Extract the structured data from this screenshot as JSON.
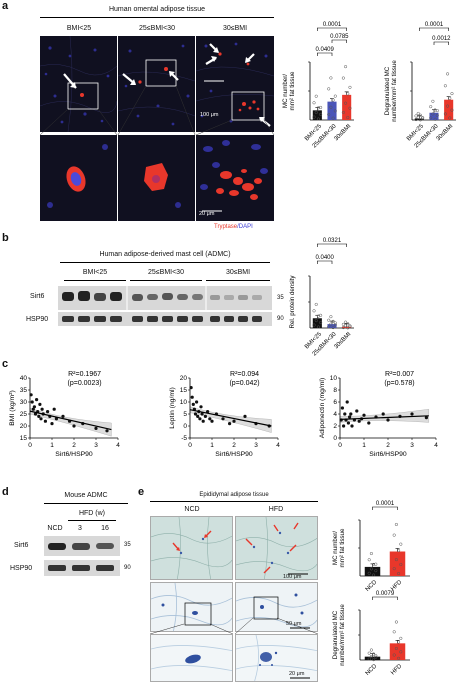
{
  "panel_a": {
    "label": "a",
    "title": "Human omental adipose tissue",
    "groups": [
      "BMI<25",
      "25≤BMI<30",
      "30≤BMI"
    ],
    "scalebar_top": "100 μm",
    "scalebar_bottom": "20 μm",
    "stain_red": "Tryptase",
    "stain_sep": "/",
    "stain_blue": "DAPI",
    "colors": {
      "red": "#e8372b",
      "blue": "#3b3bd6",
      "bmi_lt25": "#111111",
      "bmi_25_30": "#4a55b8",
      "bmi_ge30": "#e8372b"
    }
  },
  "panel_b": {
    "label": "b",
    "title": "Human adipose-derived mast cell (ADMC)",
    "groups": [
      "BMI<25",
      "25≤BMI<30",
      "30≤BMI"
    ],
    "rows": [
      "Sirt6",
      "HSP90"
    ],
    "markers": [
      "35",
      "90"
    ]
  },
  "panel_c": {
    "label": "c"
  },
  "panel_d": {
    "label": "d",
    "title": "Mouse ADMC",
    "hfd": "HFD (w)",
    "lanes": [
      "NCD",
      "3",
      "16"
    ],
    "rows": [
      "Sirt6",
      "HSP90"
    ],
    "markers": [
      "35",
      "90"
    ]
  },
  "panel_e": {
    "label": "e",
    "title": "Epididymal adipose tissue",
    "cols": [
      "NCD",
      "HFD"
    ],
    "scalebars": [
      "100 μm",
      "50 μm",
      "20 μm"
    ]
  },
  "chart_data": [
    {
      "type": "bar",
      "ylabel_line1": "MC number/",
      "ylabel_line2": "mm² fat tissue",
      "categories": [
        "BMI<25",
        "25≤BMI<30",
        "30≤BMI"
      ],
      "values": [
        1.0,
        1.9,
        2.6
      ],
      "ylim": [
        0,
        6
      ],
      "pvalues": [
        "0.0001",
        "0.0785",
        "0.0409"
      ]
    },
    {
      "type": "bar",
      "ylabel_line1": "Degranulated MC",
      "ylabel_line2": "number/mm² fat tissue",
      "categories": [
        "BMI<25",
        "25≤BMI<30",
        "30≤BMI"
      ],
      "values": [
        0.1,
        0.5,
        1.4
      ],
      "ylim": [
        0,
        4
      ],
      "pvalues": [
        "0.0001",
        "0.0012"
      ]
    },
    {
      "type": "bar",
      "ylabel": "Rel. protein density",
      "categories": [
        "BMI<25",
        "25≤BMI<30",
        "30≤BMI"
      ],
      "values": [
        0.75,
        0.3,
        0.1
      ],
      "ylim": [
        0,
        4
      ],
      "pvalues": [
        "0.0321",
        "0.0400"
      ]
    },
    {
      "type": "scatter",
      "xlabel": "Sirt6/HSP90",
      "ylabel": "BMI (kg/m²)",
      "xlim": [
        0,
        4
      ],
      "ylim": [
        15,
        40
      ],
      "xticks": [
        "0",
        "1",
        "2",
        "3",
        "4"
      ],
      "yticks": [
        "15",
        "20",
        "25",
        "30",
        "35",
        "40"
      ],
      "stat1": "R²=0.1967",
      "stat2": "(p=0.0023)",
      "fit": [
        [
          0,
          26.2
        ],
        [
          3.7,
          18.5
        ]
      ],
      "points": [
        [
          0.05,
          33
        ],
        [
          0.1,
          30
        ],
        [
          0.15,
          27
        ],
        [
          0.2,
          28
        ],
        [
          0.25,
          25
        ],
        [
          0.3,
          31
        ],
        [
          0.35,
          26
        ],
        [
          0.4,
          24
        ],
        [
          0.45,
          29
        ],
        [
          0.5,
          23
        ],
        [
          0.55,
          27
        ],
        [
          0.6,
          25
        ],
        [
          0.7,
          22
        ],
        [
          0.8,
          26
        ],
        [
          0.9,
          24
        ],
        [
          1.0,
          21
        ],
        [
          1.1,
          27
        ],
        [
          1.2,
          23
        ],
        [
          1.5,
          24
        ],
        [
          1.8,
          22
        ],
        [
          2.0,
          20
        ],
        [
          2.4,
          21
        ],
        [
          3.0,
          19
        ],
        [
          3.5,
          18
        ]
      ]
    },
    {
      "type": "scatter",
      "xlabel": "Sirt6/HSP90",
      "ylabel": "Leptin (ng/ml)",
      "xlim": [
        0,
        4
      ],
      "ylim": [
        -5,
        20
      ],
      "xticks": [
        "0",
        "1",
        "2",
        "3",
        "4"
      ],
      "yticks": [
        "-5",
        "0",
        "5",
        "10",
        "15",
        "20"
      ],
      "stat1": "R²=0.094",
      "stat2": "(p=0.042)",
      "fit": [
        [
          0,
          6.8
        ],
        [
          3.7,
          0.0
        ]
      ],
      "points": [
        [
          0.05,
          16
        ],
        [
          0.1,
          12
        ],
        [
          0.15,
          9
        ],
        [
          0.2,
          7
        ],
        [
          0.25,
          5
        ],
        [
          0.3,
          10
        ],
        [
          0.35,
          4
        ],
        [
          0.4,
          6
        ],
        [
          0.45,
          3
        ],
        [
          0.5,
          8
        ],
        [
          0.55,
          5
        ],
        [
          0.6,
          2
        ],
        [
          0.7,
          4
        ],
        [
          0.8,
          6
        ],
        [
          0.9,
          3
        ],
        [
          1.0,
          2
        ],
        [
          1.2,
          5
        ],
        [
          1.5,
          3
        ],
        [
          1.8,
          1
        ],
        [
          2.0,
          2
        ],
        [
          2.5,
          4
        ],
        [
          3.0,
          1
        ],
        [
          3.6,
          0
        ]
      ]
    },
    {
      "type": "scatter",
      "xlabel": "Sirt6/HSP90",
      "ylabel": "Adiponectin (mg/ml)",
      "xlim": [
        0,
        4
      ],
      "ylim": [
        0,
        10
      ],
      "xticks": [
        "0",
        "1",
        "2",
        "3",
        "4"
      ],
      "yticks": [
        "0",
        "2",
        "4",
        "6",
        "8",
        "10"
      ],
      "stat1": "R²=0.007",
      "stat2": "(p=0.578)",
      "fit": [
        [
          0,
          3.1
        ],
        [
          3.7,
          3.7
        ]
      ],
      "points": [
        [
          0.05,
          3
        ],
        [
          0.1,
          5
        ],
        [
          0.15,
          2
        ],
        [
          0.2,
          4
        ],
        [
          0.25,
          3
        ],
        [
          0.3,
          6
        ],
        [
          0.35,
          2.5
        ],
        [
          0.4,
          3.5
        ],
        [
          0.45,
          4
        ],
        [
          0.5,
          2
        ],
        [
          0.6,
          3
        ],
        [
          0.7,
          4.5
        ],
        [
          0.8,
          2.8
        ],
        [
          0.9,
          3.2
        ],
        [
          1.0,
          3.8
        ],
        [
          1.2,
          2.5
        ],
        [
          1.5,
          3.5
        ],
        [
          1.8,
          4
        ],
        [
          2.0,
          3
        ],
        [
          2.5,
          3.6
        ],
        [
          3.0,
          4
        ],
        [
          3.6,
          3.4
        ]
      ]
    },
    {
      "type": "bar",
      "ylabel_line1": "MC number/",
      "ylabel_line2": "mm² fat tissue",
      "categories": [
        "NCD",
        "HFD"
      ],
      "values": [
        1.3,
        3.5
      ],
      "ylim": [
        0,
        8
      ],
      "pvalues": [
        "0.0001"
      ]
    },
    {
      "type": "bar",
      "ylabel_line1": "Degranulated MC",
      "ylabel_line2": "number/mm² fat tissue",
      "categories": [
        "NCD",
        "HFD"
      ],
      "values": [
        0.2,
        1.0
      ],
      "ylim": [
        0,
        3
      ],
      "pvalues": [
        "0.0079"
      ]
    }
  ]
}
